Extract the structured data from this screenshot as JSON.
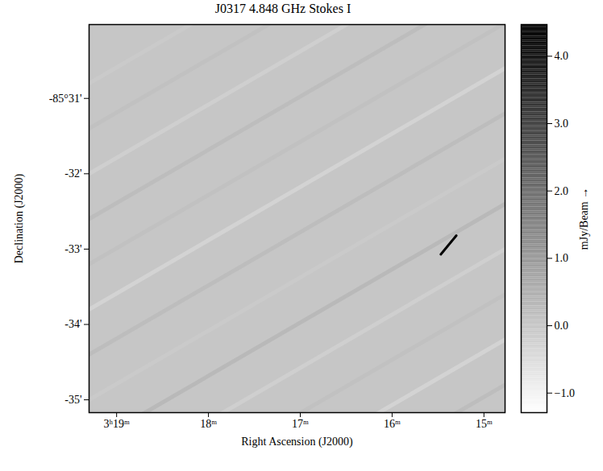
{
  "chart_data": {
    "type": "image",
    "title": "J0317 4.848 GHz Stokes I",
    "x_label": "Right Ascension (J2000)",
    "y_label": "Declination (J2000)",
    "colorbar_label": "mJy/Beam",
    "xlim": [
      19.3,
      14.77
    ],
    "xticks": [
      {
        "value": 19,
        "label": "3ʰ19ᵐ"
      },
      {
        "value": 18,
        "label": "18ᵐ"
      },
      {
        "value": 17,
        "label": "17ᵐ"
      },
      {
        "value": 16,
        "label": "16ᵐ"
      },
      {
        "value": 15,
        "label": "15ᵐ"
      }
    ],
    "ylim": [
      -35.17,
      -30.02
    ],
    "yticks": [
      {
        "value": -31,
        "label": "-85°31'"
      },
      {
        "value": -32,
        "label": "-32'"
      },
      {
        "value": -33,
        "label": "-33'"
      },
      {
        "value": -34,
        "label": "-34'"
      },
      {
        "value": -35,
        "label": "-35'"
      }
    ],
    "zlim": [
      -1.29,
      4.47
    ],
    "zticks": [
      -1,
      0,
      1,
      2,
      3,
      4
    ],
    "background": 0,
    "streaks": [
      {
        "x": [
          19.3,
          14.77
        ],
        "y": [
          -38.0,
          -34.8
        ],
        "value": 0.2
      },
      {
        "x": [
          19.3,
          14.77
        ],
        "y": [
          -37.4,
          -34.2
        ],
        "value": -0.3
      },
      {
        "x": [
          19.3,
          14.77
        ],
        "y": [
          -36.8,
          -33.6
        ],
        "value": 0.1
      },
      {
        "x": [
          19.3,
          14.77
        ],
        "y": [
          -36.2,
          -33.0
        ],
        "value": -0.2
      },
      {
        "x": [
          19.3,
          14.77
        ],
        "y": [
          -35.6,
          -32.4
        ],
        "value": 0.3
      },
      {
        "x": [
          19.3,
          14.77
        ],
        "y": [
          -35.0,
          -31.8
        ],
        "value": -0.1
      },
      {
        "x": [
          19.3,
          14.77
        ],
        "y": [
          -34.4,
          -31.2
        ],
        "value": 0.2
      },
      {
        "x": [
          19.3,
          14.77
        ],
        "y": [
          -33.8,
          -30.6
        ],
        "value": -0.3
      },
      {
        "x": [
          19.3,
          14.77
        ],
        "y": [
          -33.2,
          -30.0
        ],
        "value": 0.1
      },
      {
        "x": [
          19.3,
          14.77
        ],
        "y": [
          -32.6,
          -29.4
        ],
        "value": 0.2
      },
      {
        "x": [
          19.3,
          14.77
        ],
        "y": [
          -32.0,
          -28.8
        ],
        "value": -0.2
      },
      {
        "x": [
          19.3,
          14.77
        ],
        "y": [
          -31.4,
          -28.2
        ],
        "value": 0.1
      },
      {
        "x": [
          19.3,
          14.77
        ],
        "y": [
          -30.8,
          -27.6
        ],
        "value": -0.1
      }
    ],
    "source": {
      "x": [
        15.47,
        15.3
      ],
      "y": [
        -33.07,
        -32.82
      ],
      "value": 4.4
    }
  }
}
